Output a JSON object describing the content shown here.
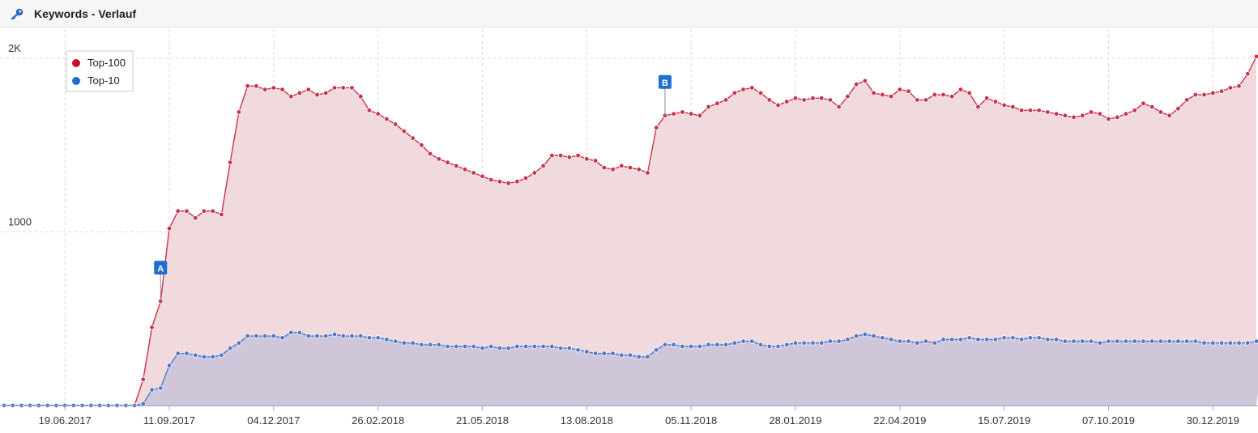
{
  "header": {
    "title": "Keywords - Verlauf",
    "icon": "key-icon"
  },
  "colors": {
    "top100_line": "#c9324a",
    "top100_fill": "#f0dade",
    "top10_line": "#4f78c8",
    "top10_fill": "#cfc6da",
    "marker_bg": "#1f6fd1",
    "grid": "#dcdcdc"
  },
  "chart_data": {
    "type": "area",
    "title": "",
    "xlabel": "",
    "ylabel": "",
    "ylim": [
      0,
      2000
    ],
    "y_ticks": [
      {
        "value": 1000,
        "label": "1000"
      },
      {
        "value": 2000,
        "label": "2K"
      }
    ],
    "x_ticks": [
      {
        "index": 7,
        "label": "19.06.2017"
      },
      {
        "index": 19,
        "label": "11.09.2017"
      },
      {
        "index": 31,
        "label": "04.12.2017"
      },
      {
        "index": 43,
        "label": "26.02.2018"
      },
      {
        "index": 55,
        "label": "21.05.2018"
      },
      {
        "index": 67,
        "label": "13.08.2018"
      },
      {
        "index": 79,
        "label": "05.11.2018"
      },
      {
        "index": 91,
        "label": "28.01.2019"
      },
      {
        "index": 103,
        "label": "22.04.2019"
      },
      {
        "index": 115,
        "label": "15.07.2019"
      },
      {
        "index": 127,
        "label": "07.10.2019"
      },
      {
        "index": 139,
        "label": "30.12.2019"
      }
    ],
    "grid": true,
    "legend_position": "top-left",
    "series": [
      {
        "name": "Top-100",
        "values": [
          0,
          0,
          0,
          0,
          0,
          0,
          0,
          0,
          0,
          0,
          0,
          0,
          0,
          0,
          0,
          0,
          150,
          450,
          600,
          1020,
          1120,
          1120,
          1080,
          1120,
          1120,
          1100,
          1400,
          1690,
          1840,
          1840,
          1820,
          1830,
          1820,
          1780,
          1800,
          1820,
          1790,
          1800,
          1830,
          1830,
          1830,
          1780,
          1700,
          1680,
          1650,
          1620,
          1580,
          1540,
          1500,
          1450,
          1420,
          1400,
          1380,
          1360,
          1340,
          1320,
          1300,
          1290,
          1280,
          1290,
          1310,
          1340,
          1380,
          1440,
          1440,
          1430,
          1440,
          1420,
          1410,
          1370,
          1360,
          1380,
          1370,
          1360,
          1340,
          1600,
          1670,
          1680,
          1690,
          1680,
          1670,
          1720,
          1740,
          1760,
          1800,
          1820,
          1830,
          1800,
          1760,
          1730,
          1750,
          1770,
          1760,
          1770,
          1770,
          1760,
          1720,
          1780,
          1850,
          1870,
          1800,
          1790,
          1780,
          1820,
          1810,
          1760,
          1760,
          1790,
          1790,
          1780,
          1820,
          1800,
          1720,
          1770,
          1750,
          1730,
          1720,
          1700,
          1700,
          1700,
          1690,
          1680,
          1670,
          1660,
          1670,
          1690,
          1680,
          1650,
          1660,
          1680,
          1700,
          1740,
          1720,
          1690,
          1670,
          1710,
          1760,
          1790,
          1790,
          1800,
          1810,
          1830,
          1840,
          1910,
          2010
        ]
      },
      {
        "name": "Top-10",
        "values": [
          0,
          0,
          0,
          0,
          0,
          0,
          0,
          0,
          0,
          0,
          0,
          0,
          0,
          0,
          0,
          0,
          10,
          90,
          100,
          230,
          300,
          300,
          290,
          280,
          280,
          290,
          330,
          360,
          400,
          400,
          400,
          400,
          390,
          420,
          420,
          400,
          400,
          400,
          410,
          400,
          400,
          400,
          390,
          390,
          380,
          370,
          360,
          360,
          350,
          350,
          350,
          340,
          340,
          340,
          340,
          330,
          340,
          330,
          330,
          340,
          340,
          340,
          340,
          340,
          330,
          330,
          320,
          310,
          300,
          300,
          300,
          290,
          290,
          280,
          280,
          320,
          350,
          350,
          340,
          340,
          340,
          350,
          350,
          350,
          360,
          370,
          370,
          350,
          340,
          340,
          350,
          360,
          360,
          360,
          360,
          370,
          370,
          380,
          400,
          410,
          400,
          390,
          380,
          370,
          370,
          360,
          370,
          360,
          380,
          380,
          380,
          390,
          380,
          380,
          380,
          390,
          390,
          380,
          390,
          390,
          380,
          380,
          370,
          370,
          370,
          370,
          360,
          370,
          370,
          370,
          370,
          370,
          370,
          370,
          370,
          370,
          370,
          370,
          360,
          360,
          360,
          360,
          360,
          360,
          370,
          380
        ]
      }
    ],
    "annotations": [
      {
        "label": "A",
        "index": 18
      },
      {
        "label": "B",
        "index": 76
      }
    ]
  }
}
